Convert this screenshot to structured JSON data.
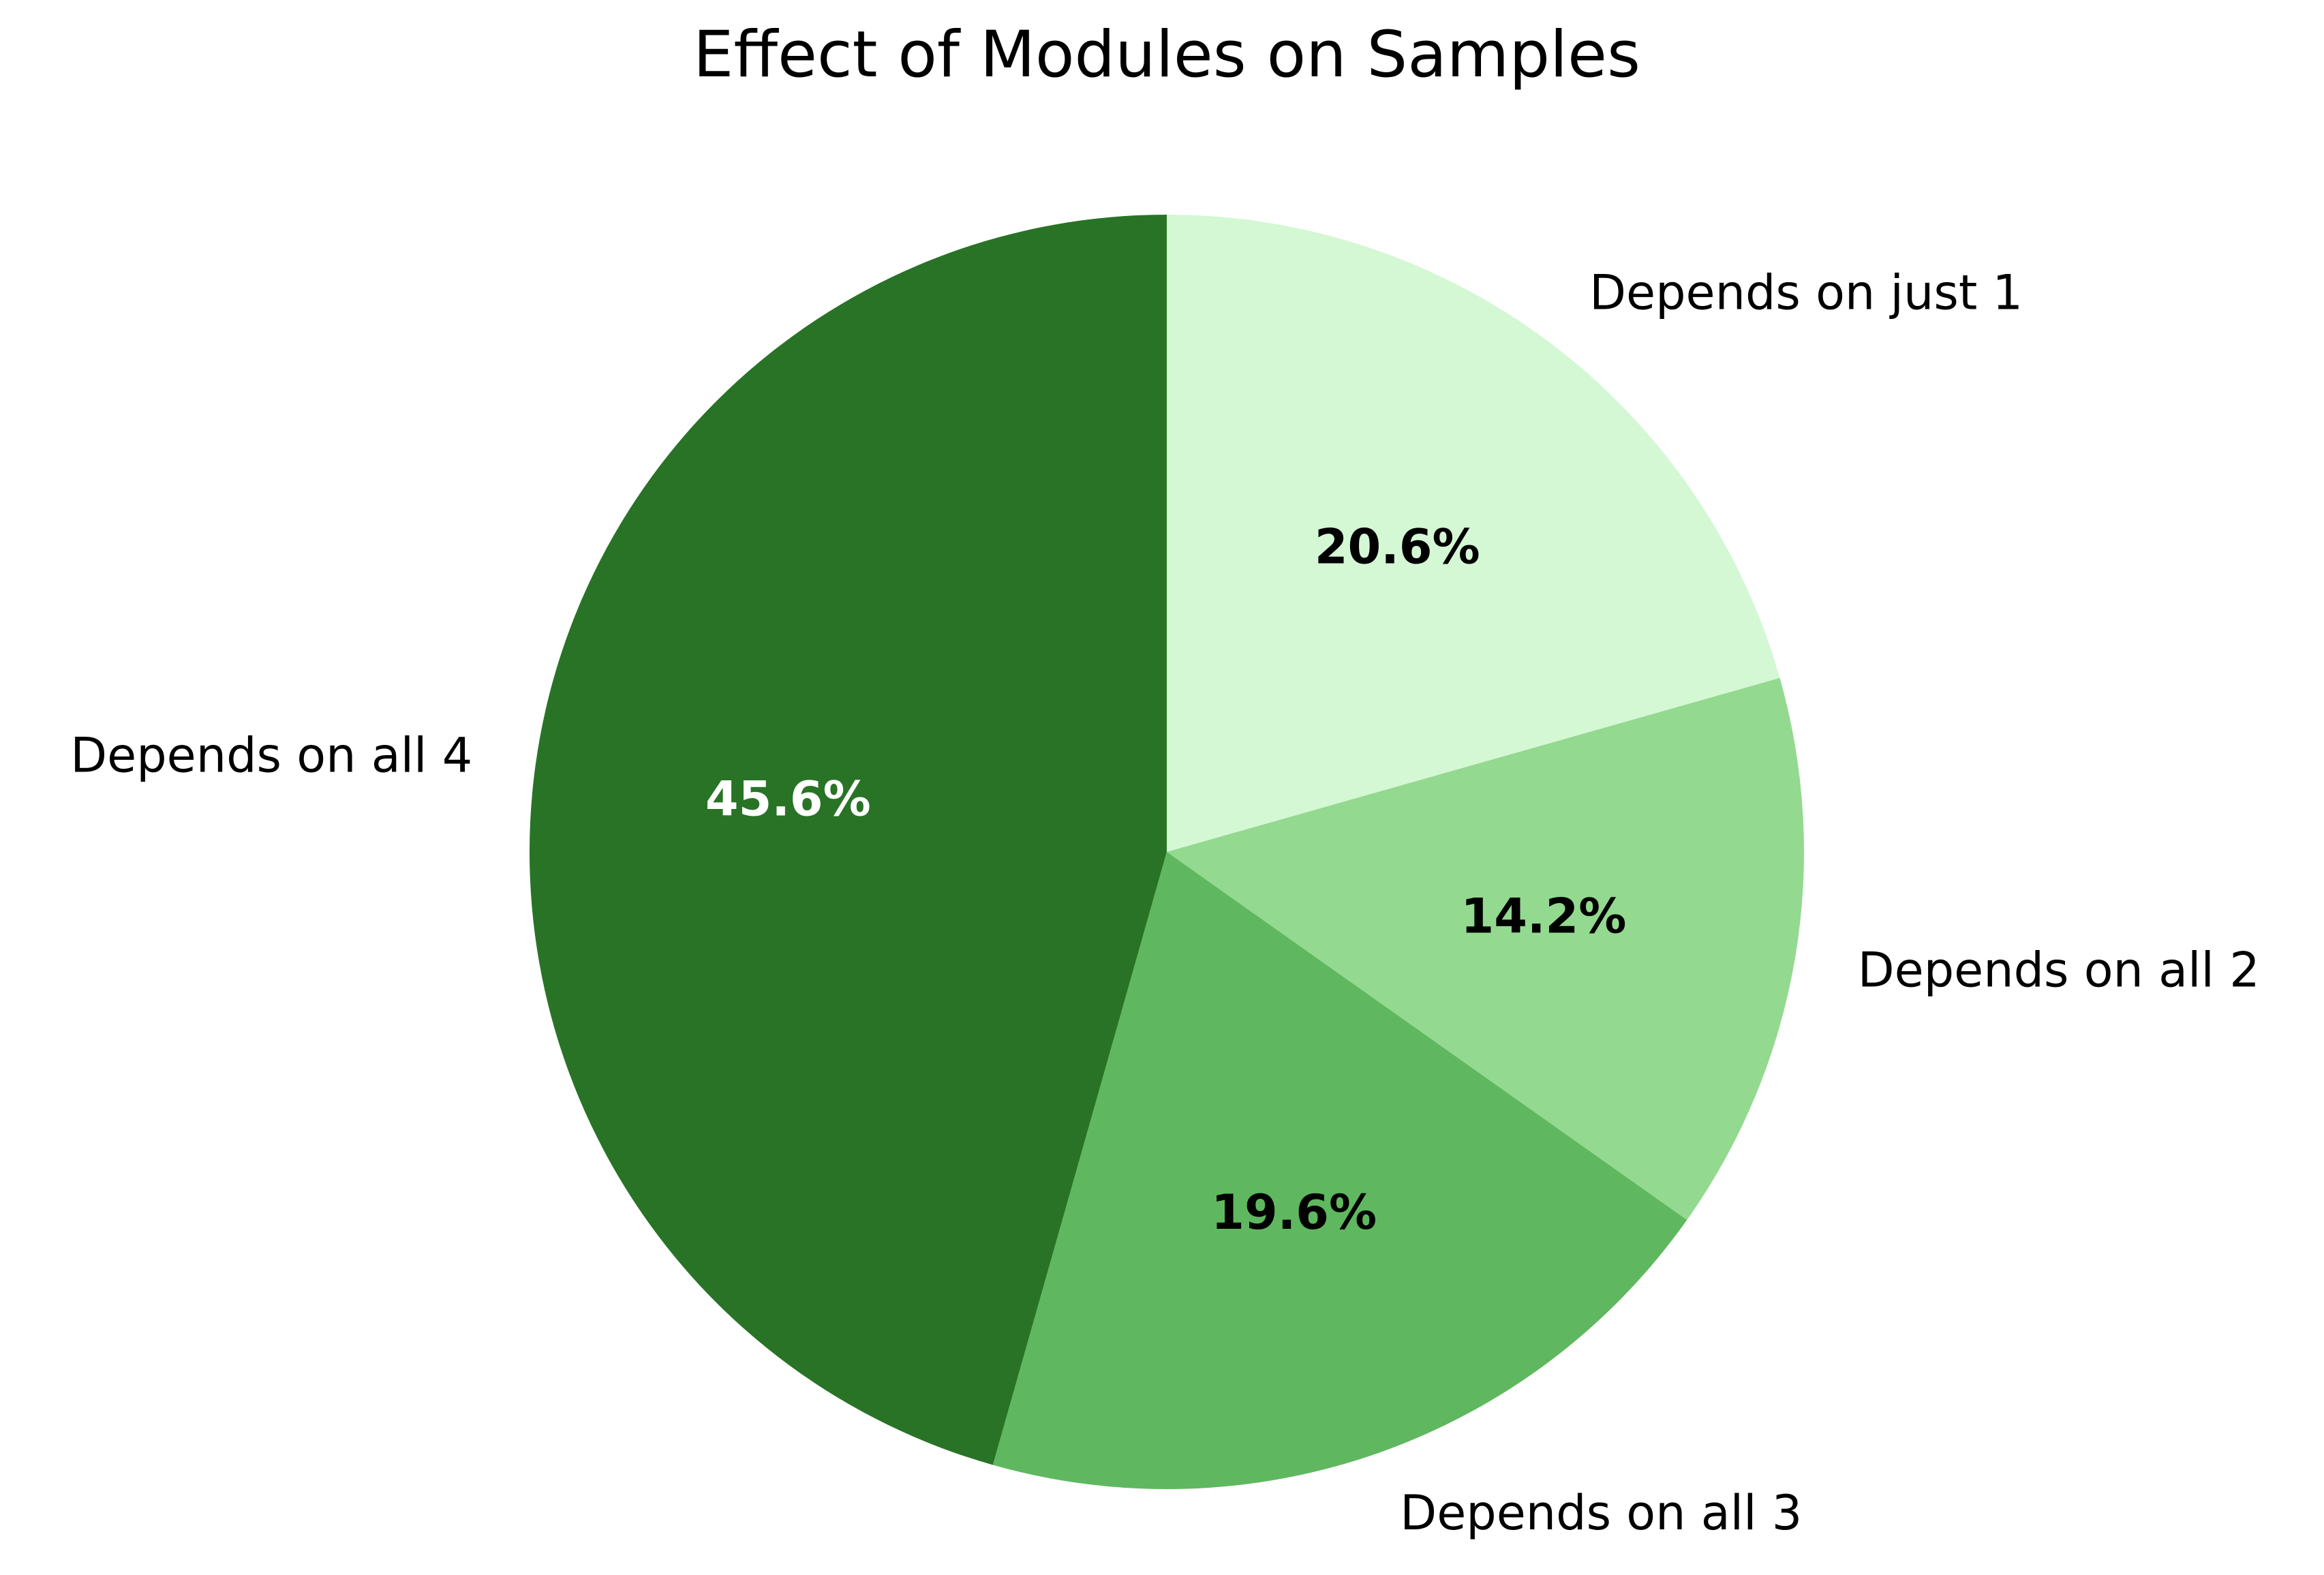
{
  "chart_data": {
    "type": "pie",
    "title": "Effect of Modules on Samples",
    "slices": [
      {
        "label": "Depends on just 1",
        "value": 20.6,
        "pct_text": "20.6%",
        "color": "#d4f7d4",
        "text_color": "#000000"
      },
      {
        "label": "Depends on all 2",
        "value": 14.2,
        "pct_text": "14.2%",
        "color": "#93d98f",
        "text_color": "#000000"
      },
      {
        "label": "Depends on all 3",
        "value": 19.6,
        "pct_text": "19.6%",
        "color": "#5fb85f",
        "text_color": "#000000"
      },
      {
        "label": "Depends on all 4",
        "value": 45.6,
        "pct_text": "45.6%",
        "color": "#297326",
        "text_color": "#ffffff"
      }
    ],
    "start_angle_deg": 90,
    "direction": "clockwise",
    "legend": "none"
  }
}
